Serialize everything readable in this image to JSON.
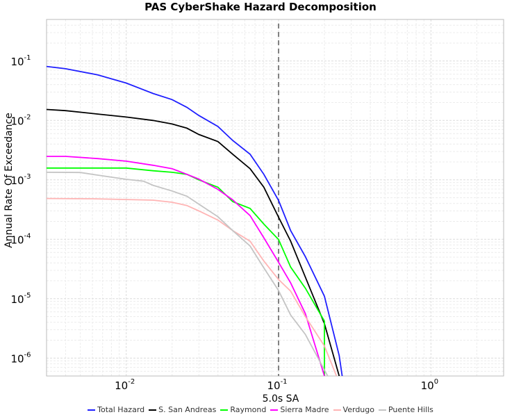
{
  "chart_data": {
    "type": "line",
    "title": "PAS CyberShake Hazard Decomposition",
    "xlabel": "5.0s SA",
    "ylabel": "Annual Rate Of Exceedance",
    "xscale": "log",
    "yscale": "log",
    "xlim": [
      0.003,
      3
    ],
    "ylim": [
      5e-07,
      0.5
    ],
    "x_ticks": [
      {
        "base": "10",
        "exp": "-2",
        "value": 0.01
      },
      {
        "base": "10",
        "exp": "-1",
        "value": 0.1
      },
      {
        "base": "10",
        "exp": "0",
        "value": 1
      }
    ],
    "y_ticks": [
      {
        "base": "10",
        "exp": "-1",
        "value": 0.1
      },
      {
        "base": "10",
        "exp": "-2",
        "value": 0.01
      },
      {
        "base": "10",
        "exp": "-3",
        "value": 0.001
      },
      {
        "base": "10",
        "exp": "-4",
        "value": 0.0001
      },
      {
        "base": "10",
        "exp": "-5",
        "value": 1e-05
      },
      {
        "base": "10",
        "exp": "-6",
        "value": 1e-06
      }
    ],
    "grid": true,
    "legend_position": "bottom",
    "reference_line": {
      "x": 0.1,
      "style": "dashed",
      "color": "#808080"
    },
    "series": [
      {
        "name": "Total Hazard",
        "color": "#1f1fff",
        "points": [
          [
            0.003,
            0.081
          ],
          [
            0.004,
            0.074
          ],
          [
            0.0065,
            0.0585
          ],
          [
            0.01,
            0.0425
          ],
          [
            0.015,
            0.0284
          ],
          [
            0.02,
            0.0224
          ],
          [
            0.025,
            0.0166
          ],
          [
            0.03,
            0.0121
          ],
          [
            0.04,
            0.0079
          ],
          [
            0.05,
            0.0046
          ],
          [
            0.065,
            0.0027
          ],
          [
            0.08,
            0.00124
          ],
          [
            0.1,
            0.00045
          ],
          [
            0.12,
            0.00014
          ],
          [
            0.15,
            5.1e-05
          ],
          [
            0.2,
            1.1e-05
          ],
          [
            0.25,
            1.1e-06
          ],
          [
            0.265,
            4e-07
          ]
        ]
      },
      {
        "name": "S. San Andreas",
        "color": "#000000",
        "points": [
          [
            0.003,
            0.0153
          ],
          [
            0.004,
            0.0146
          ],
          [
            0.0065,
            0.0128
          ],
          [
            0.01,
            0.0114
          ],
          [
            0.015,
            0.01
          ],
          [
            0.02,
            0.0087
          ],
          [
            0.025,
            0.0074
          ],
          [
            0.03,
            0.0058
          ],
          [
            0.04,
            0.0044
          ],
          [
            0.05,
            0.0027
          ],
          [
            0.065,
            0.00154
          ],
          [
            0.08,
            0.00075
          ],
          [
            0.1,
            0.000235
          ],
          [
            0.12,
            9.3e-05
          ],
          [
            0.15,
            2.3e-05
          ],
          [
            0.2,
            3.8e-06
          ],
          [
            0.25,
            5e-07
          ]
        ]
      },
      {
        "name": "Raymond",
        "color": "#00ff00",
        "points": [
          [
            0.003,
            0.00158
          ],
          [
            0.004,
            0.00158
          ],
          [
            0.0065,
            0.00158
          ],
          [
            0.01,
            0.00158
          ],
          [
            0.015,
            0.00142
          ],
          [
            0.02,
            0.00134
          ],
          [
            0.025,
            0.00124
          ],
          [
            0.03,
            0.001
          ],
          [
            0.04,
            0.00075
          ],
          [
            0.05,
            0.00043
          ],
          [
            0.065,
            0.00033
          ],
          [
            0.08,
            0.00018
          ],
          [
            0.1,
            9.9e-05
          ],
          [
            0.12,
            3.4e-05
          ],
          [
            0.15,
            1.5e-05
          ],
          [
            0.2,
            4.2e-06
          ],
          [
            0.2,
            1e-07
          ]
        ]
      },
      {
        "name": "Sierra Madre",
        "color": "#ff00ff",
        "points": [
          [
            0.003,
            0.00248
          ],
          [
            0.004,
            0.00248
          ],
          [
            0.0065,
            0.00228
          ],
          [
            0.01,
            0.00206
          ],
          [
            0.015,
            0.00176
          ],
          [
            0.02,
            0.00154
          ],
          [
            0.025,
            0.00124
          ],
          [
            0.03,
            0.00103
          ],
          [
            0.04,
            0.00069
          ],
          [
            0.05,
            0.00046
          ],
          [
            0.065,
            0.00025
          ],
          [
            0.08,
            0.000106
          ],
          [
            0.1,
            4.1e-05
          ],
          [
            0.12,
            1.84e-05
          ],
          [
            0.15,
            5.6e-06
          ],
          [
            0.2,
            5e-07
          ]
        ]
      },
      {
        "name": "Verdugo",
        "color": "#ffb4b4",
        "points": [
          [
            0.003,
            0.000485
          ],
          [
            0.006,
            0.00048
          ],
          [
            0.0127,
            0.00046
          ],
          [
            0.015,
            0.000455
          ],
          [
            0.02,
            0.00042
          ],
          [
            0.025,
            0.00037
          ],
          [
            0.03,
            0.0003
          ],
          [
            0.04,
            0.00021
          ],
          [
            0.05,
            0.00014
          ],
          [
            0.065,
            9.3e-05
          ],
          [
            0.08,
            4.3e-05
          ],
          [
            0.1,
            2.1e-05
          ],
          [
            0.12,
            1.34e-05
          ],
          [
            0.15,
            5e-06
          ],
          [
            0.2,
            1.6e-06
          ],
          [
            0.24,
            5e-07
          ]
        ]
      },
      {
        "name": "Puente Hills",
        "color": "#c4c4c4",
        "points": [
          [
            0.003,
            0.00134
          ],
          [
            0.005,
            0.00133
          ],
          [
            0.0065,
            0.0012
          ],
          [
            0.01,
            0.00102
          ],
          [
            0.013,
            0.00095
          ],
          [
            0.015,
            0.00081
          ],
          [
            0.02,
            0.00065
          ],
          [
            0.025,
            0.00053
          ],
          [
            0.03,
            0.00039
          ],
          [
            0.04,
            0.00024
          ],
          [
            0.05,
            0.00014
          ],
          [
            0.065,
            7.7e-05
          ],
          [
            0.08,
            3.3e-05
          ],
          [
            0.1,
            1.37e-05
          ],
          [
            0.12,
            5.3e-06
          ],
          [
            0.15,
            2.5e-06
          ],
          [
            0.21,
            5e-07
          ]
        ]
      }
    ]
  }
}
